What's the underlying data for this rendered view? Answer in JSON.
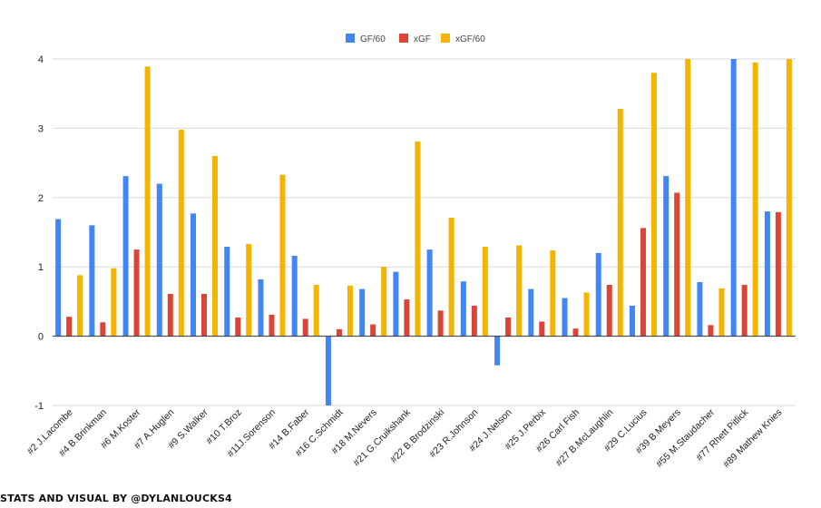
{
  "chart_data": {
    "type": "bar",
    "categories": [
      "#2 J.Lacombe",
      "#4 B.Brinkman",
      "#6 M.Koster",
      "#7 A.Huglen",
      "#9 S.Walker",
      "#10 T.Broz",
      "#11J.Sorenson",
      "#14 B.Faber",
      "#16 C.Schmidt",
      "#18 M.Nevers",
      "#21 G.Cruikshank",
      "#22 B.Brodzinski",
      "#23 R.Johnson",
      "#24 J.Nelson",
      "#25 J.Perbix",
      "#26 Carl Fish",
      "#27 B.McLaughlin",
      "#29 C.Lucius",
      "#39 B.Meyers",
      "#55 M.Staudacher",
      "#77 Rhett Pitlick",
      "#89 Mathew Knies"
    ],
    "series": [
      {
        "name": "GF/60",
        "color": "#4285f4",
        "values": [
          1.69,
          1.6,
          2.31,
          2.2,
          1.77,
          1.29,
          0.82,
          1.16,
          -1.0,
          0.68,
          0.93,
          1.25,
          0.79,
          -0.42,
          0.68,
          0.55,
          1.2,
          0.44,
          2.31,
          0.78,
          4.0,
          1.8
        ]
      },
      {
        "name": "xGF",
        "color": "#db4437",
        "values": [
          0.28,
          0.2,
          1.25,
          0.61,
          0.61,
          0.27,
          0.31,
          0.25,
          0.1,
          0.17,
          0.53,
          0.37,
          0.44,
          0.27,
          0.21,
          0.11,
          0.74,
          1.56,
          2.07,
          0.16,
          0.74,
          1.79
        ]
      },
      {
        "name": "xGF/60",
        "color": "#f4b400",
        "values": [
          0.88,
          0.98,
          3.89,
          2.98,
          2.6,
          1.33,
          2.33,
          0.74,
          0.73,
          1.0,
          2.81,
          1.71,
          1.29,
          1.31,
          1.24,
          0.63,
          3.28,
          3.8,
          4.0,
          0.69,
          3.95,
          4.0
        ]
      }
    ],
    "yticks": [
      "-1",
      "0",
      "1",
      "2",
      "3",
      "4"
    ],
    "ylim": [
      -1,
      4
    ],
    "grid": true,
    "legend_position": "top-center"
  },
  "watermark": "STATS AND VISUAL BY @DYLANLOUCKS4"
}
